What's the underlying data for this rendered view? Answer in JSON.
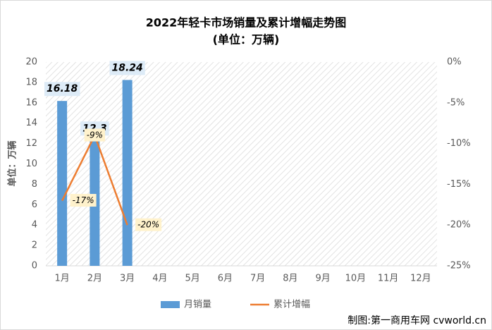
{
  "chart_data": {
    "type": "bar_line",
    "title": "2022年轻卡市场销量及累计增幅走势图",
    "subtitle": "(单位：万辆)",
    "y_label": "单位：万辆",
    "source": "制图:第一商用车网 cvworld.cn",
    "categories": [
      "1月",
      "2月",
      "3月",
      "4月",
      "5月",
      "6月",
      "7月",
      "8月",
      "9月",
      "10月",
      "11月",
      "12月"
    ],
    "series": [
      {
        "name": "月销量",
        "type": "bar",
        "color": "#5b9bd5",
        "values": [
          16.18,
          12.3,
          18.24,
          null,
          null,
          null,
          null,
          null,
          null,
          null,
          null,
          null
        ]
      },
      {
        "name": "累计增幅",
        "type": "line",
        "axis": "y2",
        "color": "#ed7d31",
        "values": [
          -17,
          -9,
          -20,
          null,
          null,
          null,
          null,
          null,
          null,
          null,
          null,
          null
        ],
        "value_labels": [
          "-17%",
          "-9%",
          "-20%",
          null,
          null,
          null,
          null,
          null,
          null,
          null,
          null,
          null
        ]
      }
    ],
    "ylim": [
      0,
      20
    ],
    "yticks": [
      0,
      2,
      4,
      6,
      8,
      10,
      12,
      14,
      16,
      18,
      20
    ],
    "y2lim": [
      -25,
      0
    ],
    "y2ticks": [
      {
        "value": 0,
        "label": "0%"
      },
      {
        "value": -5,
        "label": "-5%"
      },
      {
        "value": -10,
        "label": "-10%"
      },
      {
        "value": -15,
        "label": "-15%"
      },
      {
        "value": -20,
        "label": "-20%"
      },
      {
        "value": -25,
        "label": "-25%"
      }
    ],
    "legend": "bottom"
  }
}
